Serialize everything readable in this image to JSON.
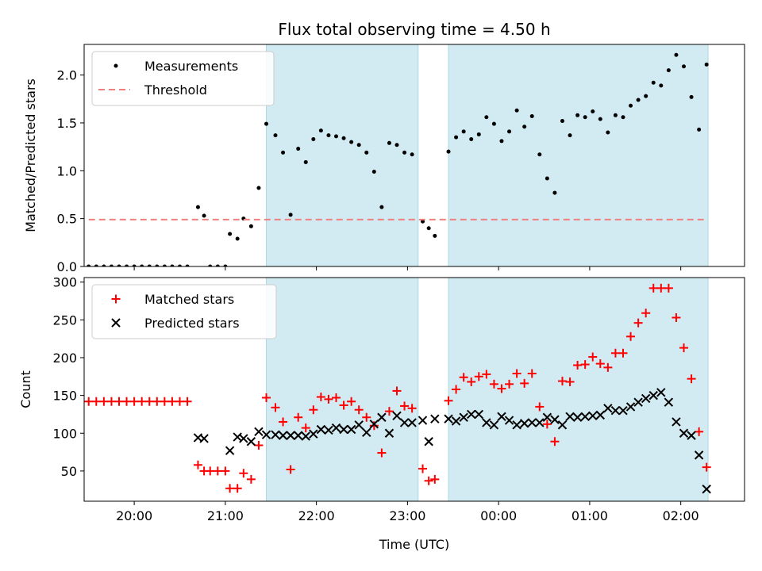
{
  "figure": {
    "title": "Flux total observing time = 4.50 h",
    "xlabel": "Time (UTC)"
  },
  "colors": {
    "band": "#add8e6",
    "measurement": "#000000",
    "threshold": "#f08080",
    "matched": "#ff0000",
    "predicted": "#000000"
  },
  "chart_data": [
    {
      "type": "scatter",
      "panel": "top",
      "ylabel": "Matched/Predicted stars",
      "xlim": [
        "19:27",
        "02:42"
      ],
      "ylim": [
        0,
        2.32
      ],
      "xticks": [
        "20:00",
        "21:00",
        "22:00",
        "23:00",
        "00:00",
        "01:00",
        "02:00"
      ],
      "yticks": [
        "0.0",
        "0.5",
        "1.0",
        "1.5",
        "2.0"
      ],
      "legend": {
        "placement": "top-left",
        "entries": [
          "Measurements",
          "Threshold"
        ]
      },
      "shaded_intervals": [
        [
          "21:27",
          "23:07"
        ],
        [
          "23:27",
          "02:18"
        ]
      ],
      "series": [
        {
          "name": "Measurements",
          "points": [
            [
              "19:30",
              0
            ],
            [
              "19:35",
              0
            ],
            [
              "19:40",
              0
            ],
            [
              "19:45",
              0
            ],
            [
              "19:50",
              0
            ],
            [
              "19:55",
              0
            ],
            [
              "20:00",
              0
            ],
            [
              "20:05",
              0
            ],
            [
              "20:10",
              0
            ],
            [
              "20:15",
              0
            ],
            [
              "20:20",
              0
            ],
            [
              "20:25",
              0
            ],
            [
              "20:30",
              0
            ],
            [
              "20:35",
              0
            ],
            [
              "20:42",
              0.62
            ],
            [
              "20:46",
              0.53
            ],
            [
              "20:50",
              0
            ],
            [
              "20:55",
              0
            ],
            [
              "21:00",
              0
            ],
            [
              "21:03",
              0.34
            ],
            [
              "21:08",
              0.29
            ],
            [
              "21:12",
              0.5
            ],
            [
              "21:17",
              0.42
            ],
            [
              "21:22",
              0.82
            ],
            [
              "21:27",
              1.49
            ],
            [
              "21:33",
              1.37
            ],
            [
              "21:38",
              1.19
            ],
            [
              "21:43",
              0.54
            ],
            [
              "21:48",
              1.23
            ],
            [
              "21:53",
              1.09
            ],
            [
              "21:58",
              1.33
            ],
            [
              "22:03",
              1.42
            ],
            [
              "22:08",
              1.37
            ],
            [
              "22:13",
              1.36
            ],
            [
              "22:18",
              1.34
            ],
            [
              "22:23",
              1.3
            ],
            [
              "22:28",
              1.27
            ],
            [
              "22:33",
              1.19
            ],
            [
              "22:38",
              0.99
            ],
            [
              "22:43",
              0.62
            ],
            [
              "22:48",
              1.29
            ],
            [
              "22:53",
              1.27
            ],
            [
              "22:58",
              1.19
            ],
            [
              "23:03",
              1.17
            ],
            [
              "23:10",
              0.47
            ],
            [
              "23:14",
              0.4
            ],
            [
              "23:18",
              0.32
            ],
            [
              "23:27",
              1.2
            ],
            [
              "23:32",
              1.35
            ],
            [
              "23:37",
              1.41
            ],
            [
              "23:42",
              1.33
            ],
            [
              "23:47",
              1.38
            ],
            [
              "23:52",
              1.56
            ],
            [
              "23:57",
              1.49
            ],
            [
              "00:02",
              1.31
            ],
            [
              "00:07",
              1.41
            ],
            [
              "00:12",
              1.63
            ],
            [
              "00:17",
              1.46
            ],
            [
              "00:22",
              1.57
            ],
            [
              "00:27",
              1.17
            ],
            [
              "00:32",
              0.92
            ],
            [
              "00:37",
              0.77
            ],
            [
              "00:42",
              1.52
            ],
            [
              "00:47",
              1.37
            ],
            [
              "00:52",
              1.58
            ],
            [
              "00:57",
              1.56
            ],
            [
              "01:02",
              1.62
            ],
            [
              "01:07",
              1.54
            ],
            [
              "01:12",
              1.4
            ],
            [
              "01:17",
              1.58
            ],
            [
              "01:22",
              1.56
            ],
            [
              "01:27",
              1.68
            ],
            [
              "01:32",
              1.74
            ],
            [
              "01:37",
              1.78
            ],
            [
              "01:42",
              1.92
            ],
            [
              "01:47",
              1.89
            ],
            [
              "01:52",
              2.05
            ],
            [
              "01:57",
              2.21
            ],
            [
              "02:02",
              2.09
            ],
            [
              "02:07",
              1.77
            ],
            [
              "02:12",
              1.43
            ],
            [
              "02:17",
              2.11
            ]
          ]
        },
        {
          "name": "Threshold",
          "style": "dashed",
          "points": [
            [
              "19:30",
              0.49
            ],
            [
              "02:17",
              0.49
            ]
          ]
        }
      ]
    },
    {
      "type": "scatter",
      "panel": "bottom",
      "ylabel": "Count",
      "xlim": [
        "19:27",
        "02:42"
      ],
      "ylim": [
        10,
        306
      ],
      "xticks": [
        "20:00",
        "21:00",
        "22:00",
        "23:00",
        "00:00",
        "01:00",
        "02:00"
      ],
      "yticks": [
        "50",
        "100",
        "150",
        "200",
        "250",
        "300"
      ],
      "legend": {
        "placement": "top-left",
        "entries": [
          "Matched stars",
          "Predicted stars"
        ]
      },
      "shaded_intervals": [
        [
          "21:27",
          "23:07"
        ],
        [
          "23:27",
          "02:18"
        ]
      ],
      "series": [
        {
          "name": "Matched stars",
          "marker": "plus",
          "points": [
            [
              "19:30",
              142
            ],
            [
              "19:35",
              142
            ],
            [
              "19:40",
              142
            ],
            [
              "19:45",
              142
            ],
            [
              "19:50",
              142
            ],
            [
              "19:55",
              142
            ],
            [
              "20:00",
              142
            ],
            [
              "20:05",
              142
            ],
            [
              "20:10",
              142
            ],
            [
              "20:15",
              142
            ],
            [
              "20:20",
              142
            ],
            [
              "20:25",
              142
            ],
            [
              "20:30",
              142
            ],
            [
              "20:35",
              142
            ],
            [
              "20:42",
              58
            ],
            [
              "20:46",
              50
            ],
            [
              "20:50",
              50
            ],
            [
              "20:55",
              50
            ],
            [
              "21:00",
              50
            ],
            [
              "21:03",
              27
            ],
            [
              "21:08",
              27
            ],
            [
              "21:12",
              47
            ],
            [
              "21:17",
              39
            ],
            [
              "21:22",
              84
            ],
            [
              "21:27",
              147
            ],
            [
              "21:33",
              134
            ],
            [
              "21:38",
              115
            ],
            [
              "21:43",
              52
            ],
            [
              "21:48",
              121
            ],
            [
              "21:53",
              107
            ],
            [
              "21:58",
              131
            ],
            [
              "22:03",
              148
            ],
            [
              "22:08",
              145
            ],
            [
              "22:13",
              147
            ],
            [
              "22:18",
              137
            ],
            [
              "22:23",
              142
            ],
            [
              "22:28",
              131
            ],
            [
              "22:33",
              121
            ],
            [
              "22:38",
              110
            ],
            [
              "22:43",
              74
            ],
            [
              "22:48",
              129
            ],
            [
              "22:53",
              156
            ],
            [
              "22:58",
              136
            ],
            [
              "23:03",
              133
            ],
            [
              "23:10",
              53
            ],
            [
              "23:14",
              37
            ],
            [
              "23:18",
              39
            ],
            [
              "23:27",
              143
            ],
            [
              "23:32",
              158
            ],
            [
              "23:37",
              174
            ],
            [
              "23:42",
              168
            ],
            [
              "23:47",
              175
            ],
            [
              "23:52",
              178
            ],
            [
              "23:57",
              165
            ],
            [
              "00:02",
              159
            ],
            [
              "00:07",
              165
            ],
            [
              "00:12",
              179
            ],
            [
              "00:17",
              166
            ],
            [
              "00:22",
              179
            ],
            [
              "00:27",
              135
            ],
            [
              "00:32",
              112
            ],
            [
              "00:37",
              89
            ],
            [
              "00:42",
              169
            ],
            [
              "00:47",
              168
            ],
            [
              "00:52",
              190
            ],
            [
              "00:57",
              191
            ],
            [
              "01:02",
              201
            ],
            [
              "01:07",
              192
            ],
            [
              "01:12",
              187
            ],
            [
              "01:17",
              206
            ],
            [
              "01:22",
              206
            ],
            [
              "01:27",
              228
            ],
            [
              "01:32",
              246
            ],
            [
              "01:37",
              259
            ],
            [
              "01:42",
              292
            ],
            [
              "01:47",
              292
            ],
            [
              "01:52",
              292
            ],
            [
              "01:57",
              253
            ],
            [
              "02:02",
              213
            ],
            [
              "02:07",
              172
            ],
            [
              "02:12",
              102
            ],
            [
              "02:17",
              55
            ]
          ]
        },
        {
          "name": "Predicted stars",
          "marker": "x",
          "points": [
            [
              "20:42",
              94
            ],
            [
              "20:46",
              93
            ],
            [
              "21:03",
              77
            ],
            [
              "21:08",
              95
            ],
            [
              "21:12",
              93
            ],
            [
              "21:17",
              89
            ],
            [
              "21:22",
              102
            ],
            [
              "21:27",
              98
            ],
            [
              "21:33",
              98
            ],
            [
              "21:38",
              97
            ],
            [
              "21:43",
              97
            ],
            [
              "21:48",
              97
            ],
            [
              "21:53",
              96
            ],
            [
              "21:58",
              99
            ],
            [
              "22:03",
              105
            ],
            [
              "22:08",
              104
            ],
            [
              "22:13",
              107
            ],
            [
              "22:18",
              105
            ],
            [
              "22:23",
              105
            ],
            [
              "22:28",
              111
            ],
            [
              "22:33",
              101
            ],
            [
              "22:38",
              112
            ],
            [
              "22:43",
              121
            ],
            [
              "22:48",
              100
            ],
            [
              "22:53",
              123
            ],
            [
              "22:58",
              114
            ],
            [
              "23:03",
              114
            ],
            [
              "23:10",
              117
            ],
            [
              "23:14",
              89
            ],
            [
              "23:18",
              119
            ],
            [
              "23:27",
              119
            ],
            [
              "23:32",
              116
            ],
            [
              "23:37",
              121
            ],
            [
              "23:42",
              125
            ],
            [
              "23:47",
              125
            ],
            [
              "23:52",
              114
            ],
            [
              "23:57",
              111
            ],
            [
              "00:02",
              122
            ],
            [
              "00:07",
              117
            ],
            [
              "00:12",
              111
            ],
            [
              "00:17",
              113
            ],
            [
              "00:22",
              114
            ],
            [
              "00:27",
              114
            ],
            [
              "00:32",
              121
            ],
            [
              "00:37",
              118
            ],
            [
              "00:42",
              111
            ],
            [
              "00:47",
              122
            ],
            [
              "00:52",
              121
            ],
            [
              "00:57",
              122
            ],
            [
              "01:02",
              123
            ],
            [
              "01:07",
              124
            ],
            [
              "01:12",
              133
            ],
            [
              "01:17",
              130
            ],
            [
              "01:22",
              130
            ],
            [
              "01:27",
              135
            ],
            [
              "01:32",
              141
            ],
            [
              "01:37",
              146
            ],
            [
              "01:42",
              150
            ],
            [
              "01:47",
              154
            ],
            [
              "01:52",
              141
            ],
            [
              "01:57",
              115
            ],
            [
              "02:02",
              100
            ],
            [
              "02:07",
              97
            ],
            [
              "02:12",
              71
            ],
            [
              "02:17",
              26
            ]
          ]
        }
      ]
    }
  ]
}
